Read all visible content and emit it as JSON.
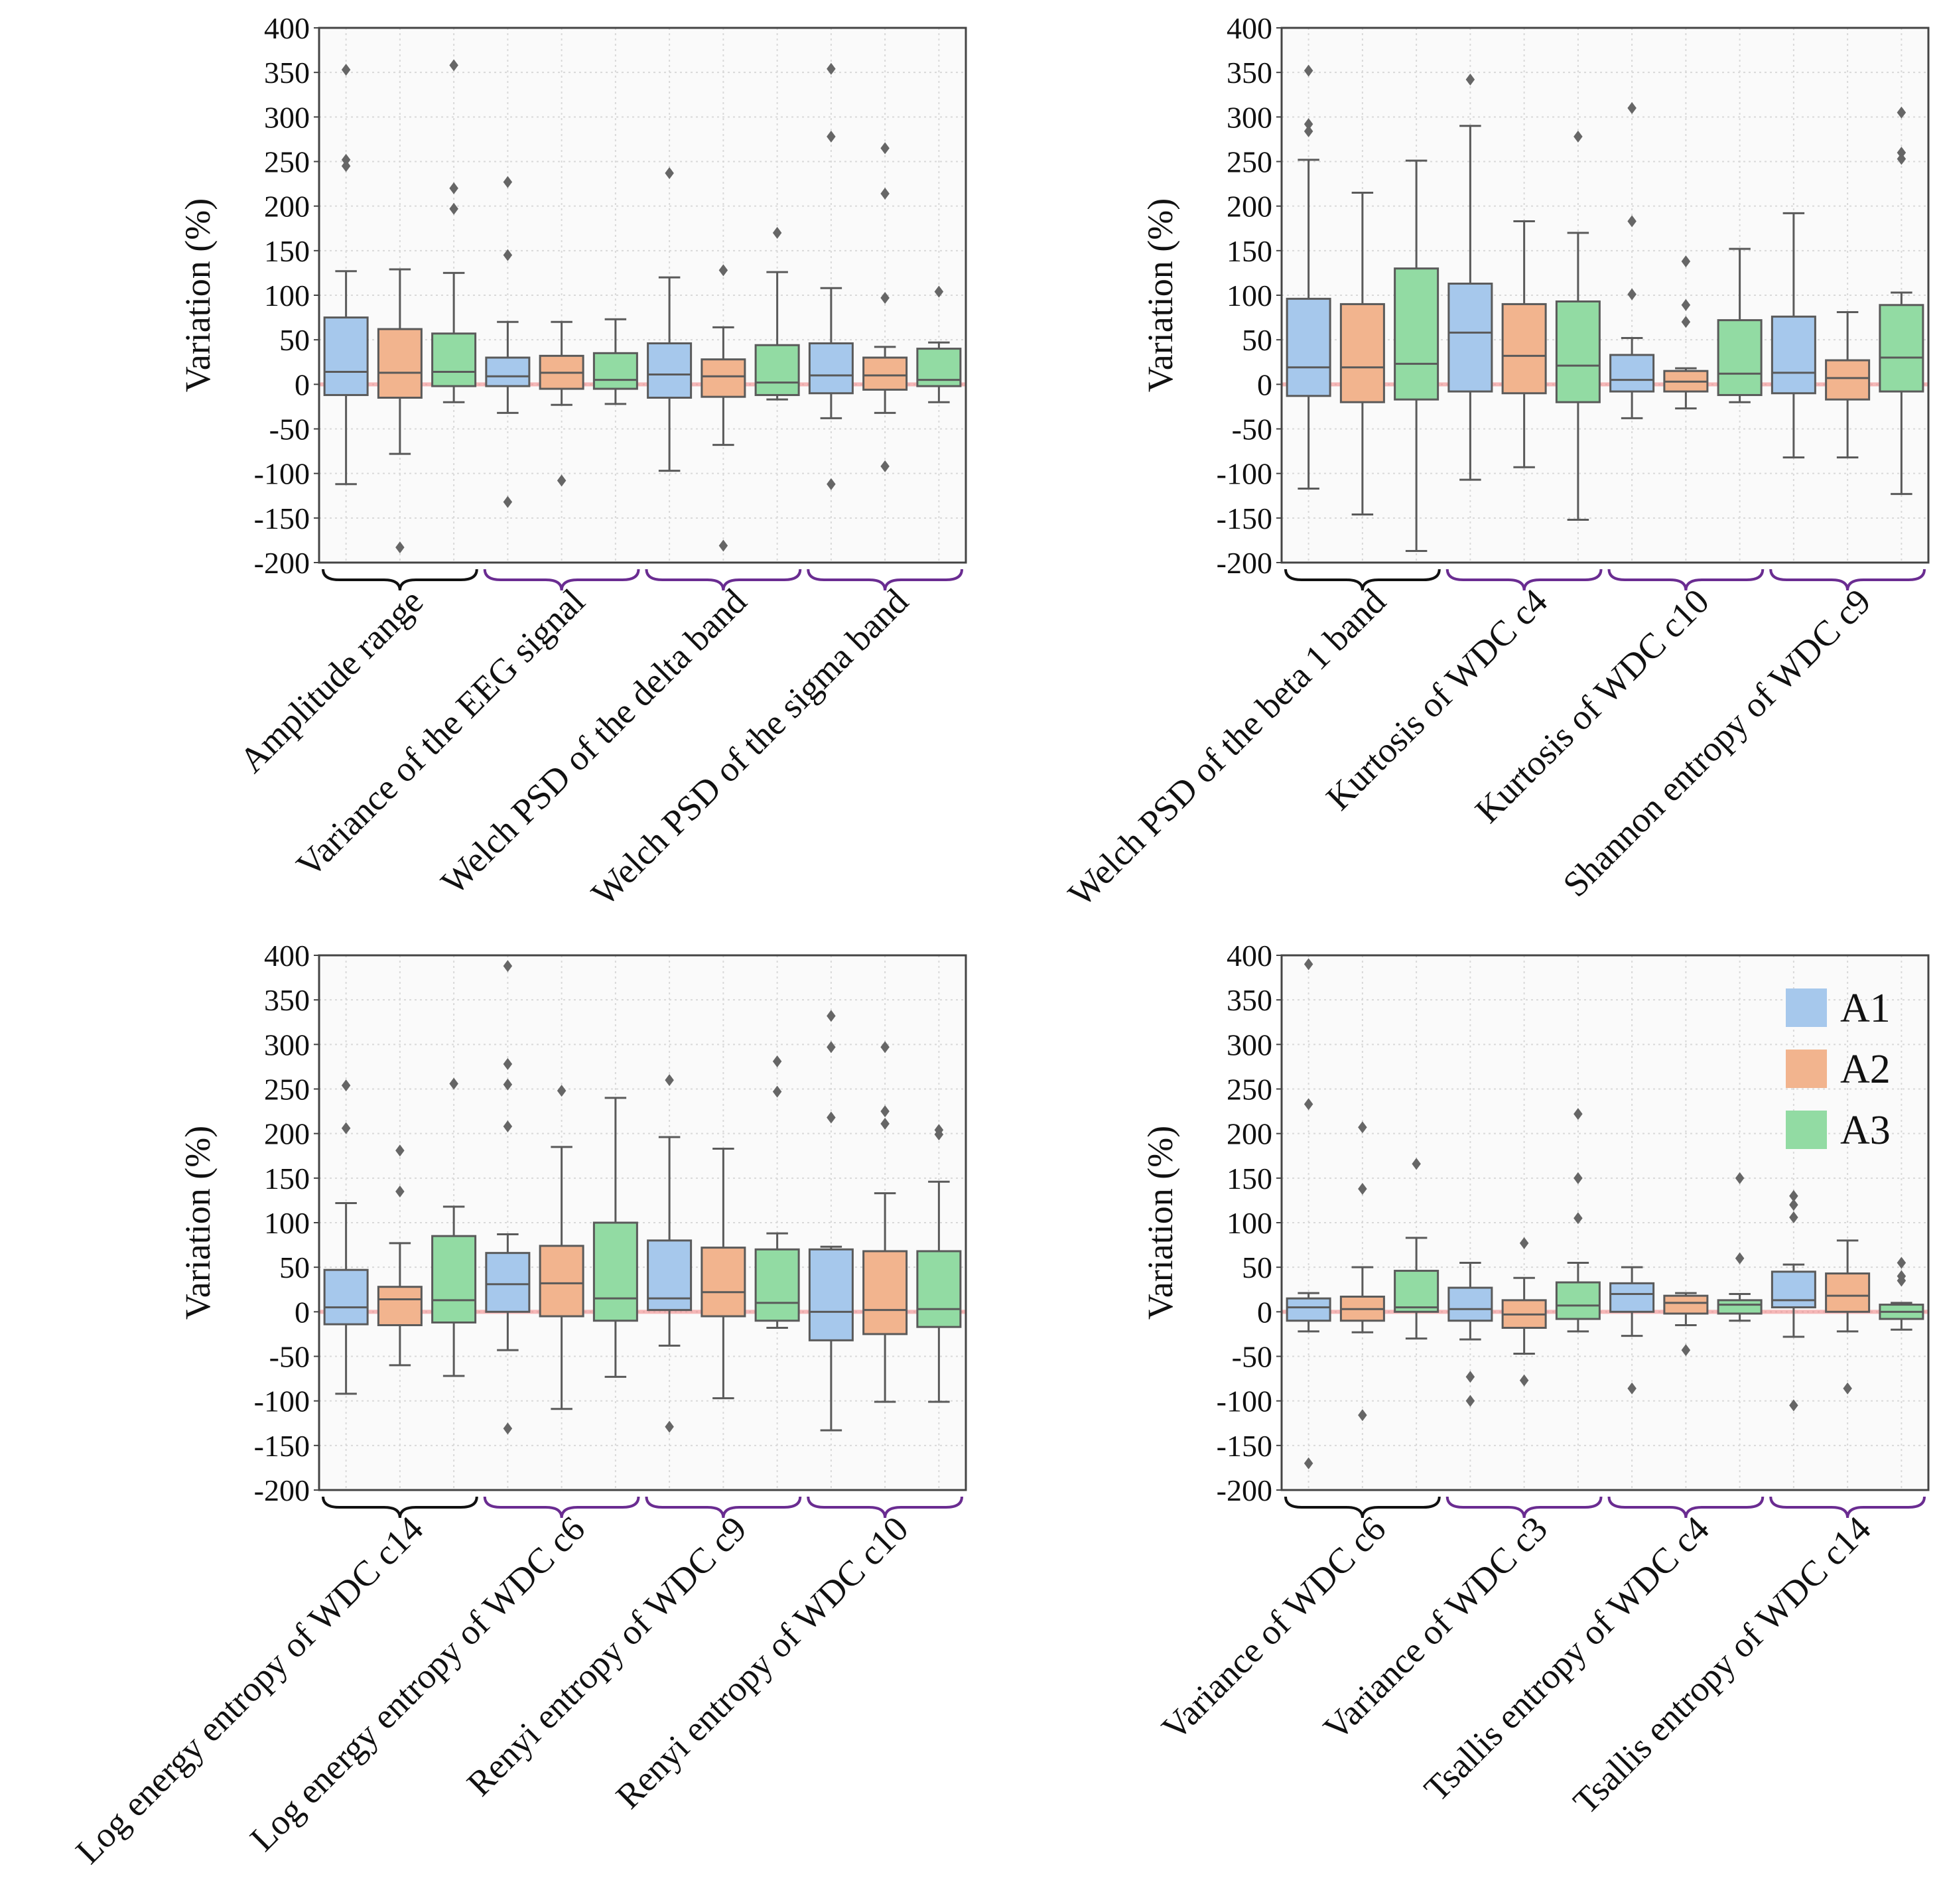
{
  "chart_data": {
    "type": "boxplot",
    "ylabel": "Variation (%)",
    "ylim": [
      -200,
      400
    ],
    "yticks": [
      400,
      350,
      300,
      250,
      200,
      150,
      100,
      50,
      0,
      -50,
      -100,
      -150,
      -200
    ],
    "grid": true,
    "legend": {
      "position": "top-right of bottom-right panel",
      "entries": [
        {
          "name": "A1",
          "color": "#a6c8ec"
        },
        {
          "name": "A2",
          "color": "#f2b48e"
        },
        {
          "name": "A3",
          "color": "#92dba3"
        }
      ]
    },
    "colors": {
      "box_edge": "#5a5a5a",
      "zero_line": "#f08080",
      "grid": "#d9d9d9",
      "plot_bg": "#fafafa",
      "first_brace": "#111111",
      "other_braces": "#6a2c91",
      "outlier": "#666666"
    },
    "panels": [
      {
        "features": [
          {
            "label": "Amplitude range",
            "boxes": [
              {
                "series": "A1",
                "whisker_low": -112,
                "q1": -12,
                "median": 14,
                "q3": 75,
                "whisker_high": 127,
                "outliers": [
                  353,
                  252,
                  245
                ]
              },
              {
                "series": "A2",
                "whisker_low": -78,
                "q1": -15,
                "median": 13,
                "q3": 62,
                "whisker_high": 129,
                "outliers": [
                  -183
                ]
              },
              {
                "series": "A3",
                "whisker_low": -20,
                "q1": -2,
                "median": 14,
                "q3": 57,
                "whisker_high": 125,
                "outliers": [
                  358,
                  220,
                  197
                ]
              }
            ]
          },
          {
            "label": "Variance of the EEG signal",
            "boxes": [
              {
                "series": "A1",
                "whisker_low": -32,
                "q1": -2,
                "median": 9,
                "q3": 30,
                "whisker_high": 70,
                "outliers": [
                  227,
                  145,
                  -132
                ]
              },
              {
                "series": "A2",
                "whisker_low": -23,
                "q1": -5,
                "median": 13,
                "q3": 32,
                "whisker_high": 70,
                "outliers": [
                  -108
                ]
              },
              {
                "series": "A3",
                "whisker_low": -22,
                "q1": -5,
                "median": 5,
                "q3": 35,
                "whisker_high": 73,
                "outliers": []
              }
            ]
          },
          {
            "label": "Welch PSD of the delta band",
            "boxes": [
              {
                "series": "A1",
                "whisker_low": -97,
                "q1": -15,
                "median": 11,
                "q3": 46,
                "whisker_high": 120,
                "outliers": [
                  237
                ]
              },
              {
                "series": "A2",
                "whisker_low": -68,
                "q1": -14,
                "median": 9,
                "q3": 28,
                "whisker_high": 64,
                "outliers": [
                  128,
                  -181
                ]
              },
              {
                "series": "A3",
                "whisker_low": -17,
                "q1": -12,
                "median": 2,
                "q3": 44,
                "whisker_high": 126,
                "outliers": [
                  170
                ]
              }
            ]
          },
          {
            "label": "Welch PSD of the sigma band",
            "boxes": [
              {
                "series": "A1",
                "whisker_low": -38,
                "q1": -10,
                "median": 10,
                "q3": 46,
                "whisker_high": 108,
                "outliers": [
                  354,
                  278,
                  -112
                ]
              },
              {
                "series": "A2",
                "whisker_low": -32,
                "q1": -6,
                "median": 10,
                "q3": 30,
                "whisker_high": 42,
                "outliers": [
                  265,
                  214,
                  97,
                  -92
                ]
              },
              {
                "series": "A3",
                "whisker_low": -20,
                "q1": -2,
                "median": 5,
                "q3": 40,
                "whisker_high": 47,
                "outliers": [
                  104
                ]
              }
            ]
          }
        ]
      },
      {
        "features": [
          {
            "label": "Welch PSD of the beta 1 band",
            "boxes": [
              {
                "series": "A1",
                "whisker_low": -117,
                "q1": -13,
                "median": 19,
                "q3": 96,
                "whisker_high": 252,
                "outliers": [
                  352,
                  292,
                  284
                ]
              },
              {
                "series": "A2",
                "whisker_low": -146,
                "q1": -20,
                "median": 19,
                "q3": 90,
                "whisker_high": 215,
                "outliers": []
              },
              {
                "series": "A3",
                "whisker_low": -187,
                "q1": -17,
                "median": 23,
                "q3": 130,
                "whisker_high": 251,
                "outliers": []
              }
            ]
          },
          {
            "label": "Kurtosis of WDC c4",
            "boxes": [
              {
                "series": "A1",
                "whisker_low": -107,
                "q1": -8,
                "median": 58,
                "q3": 113,
                "whisker_high": 290,
                "outliers": [
                  342
                ]
              },
              {
                "series": "A2",
                "whisker_low": -93,
                "q1": -10,
                "median": 32,
                "q3": 90,
                "whisker_high": 183,
                "outliers": []
              },
              {
                "series": "A3",
                "whisker_low": -152,
                "q1": -20,
                "median": 21,
                "q3": 93,
                "whisker_high": 170,
                "outliers": [
                  278
                ]
              }
            ]
          },
          {
            "label": "Kurtosis of WDC c10",
            "boxes": [
              {
                "series": "A1",
                "whisker_low": -38,
                "q1": -8,
                "median": 5,
                "q3": 33,
                "whisker_high": 52,
                "outliers": [
                  310,
                  183,
                  101
                ]
              },
              {
                "series": "A2",
                "whisker_low": -27,
                "q1": -8,
                "median": 3,
                "q3": 15,
                "whisker_high": 18,
                "outliers": [
                  138,
                  89,
                  70
                ]
              },
              {
                "series": "A3",
                "whisker_low": -20,
                "q1": -12,
                "median": 12,
                "q3": 72,
                "whisker_high": 152,
                "outliers": []
              }
            ]
          },
          {
            "label": "Shannon entropy of WDC c9",
            "boxes": [
              {
                "series": "A1",
                "whisker_low": -82,
                "q1": -10,
                "median": 13,
                "q3": 76,
                "whisker_high": 192,
                "outliers": []
              },
              {
                "series": "A2",
                "whisker_low": -82,
                "q1": -17,
                "median": 7,
                "q3": 27,
                "whisker_high": 81,
                "outliers": []
              },
              {
                "series": "A3",
                "whisker_low": -123,
                "q1": -8,
                "median": 30,
                "q3": 89,
                "whisker_high": 103,
                "outliers": [
                  305,
                  260,
                  253
                ]
              }
            ]
          }
        ]
      },
      {
        "features": [
          {
            "label": "Log energy entropy of WDC c14",
            "boxes": [
              {
                "series": "A1",
                "whisker_low": -92,
                "q1": -14,
                "median": 5,
                "q3": 47,
                "whisker_high": 122,
                "outliers": [
                  254,
                  206
                ]
              },
              {
                "series": "A2",
                "whisker_low": -60,
                "q1": -15,
                "median": 14,
                "q3": 28,
                "whisker_high": 77,
                "outliers": [
                  181,
                  135
                ]
              },
              {
                "series": "A3",
                "whisker_low": -72,
                "q1": -12,
                "median": 13,
                "q3": 85,
                "whisker_high": 118,
                "outliers": [
                  256
                ]
              }
            ]
          },
          {
            "label": "Log energy entropy of WDC c6",
            "boxes": [
              {
                "series": "A1",
                "whisker_low": -43,
                "q1": 0,
                "median": 31,
                "q3": 66,
                "whisker_high": 87,
                "outliers": [
                  388,
                  278,
                  255,
                  208,
                  -131
                ]
              },
              {
                "series": "A2",
                "whisker_low": -109,
                "q1": -5,
                "median": 32,
                "q3": 74,
                "whisker_high": 185,
                "outliers": [
                  248
                ]
              },
              {
                "series": "A3",
                "whisker_low": -73,
                "q1": -10,
                "median": 15,
                "q3": 100,
                "whisker_high": 240,
                "outliers": []
              }
            ]
          },
          {
            "label": "Renyi entropy of WDC c9",
            "boxes": [
              {
                "series": "A1",
                "whisker_low": -38,
                "q1": 2,
                "median": 15,
                "q3": 80,
                "whisker_high": 196,
                "outliers": [
                  260,
                  -129
                ]
              },
              {
                "series": "A2",
                "whisker_low": -97,
                "q1": -5,
                "median": 22,
                "q3": 72,
                "whisker_high": 183,
                "outliers": []
              },
              {
                "series": "A3",
                "whisker_low": -18,
                "q1": -10,
                "median": 10,
                "q3": 70,
                "whisker_high": 88,
                "outliers": [
                  281,
                  247
                ]
              }
            ]
          },
          {
            "label": "Renyi entropy of WDC c10",
            "boxes": [
              {
                "series": "A1",
                "whisker_low": -133,
                "q1": -32,
                "median": 0,
                "q3": 70,
                "whisker_high": 73,
                "outliers": [
                  332,
                  297,
                  218
                ]
              },
              {
                "series": "A2",
                "whisker_low": -101,
                "q1": -25,
                "median": 2,
                "q3": 68,
                "whisker_high": 133,
                "outliers": [
                  297,
                  225,
                  211
                ]
              },
              {
                "series": "A3",
                "whisker_low": -101,
                "q1": -17,
                "median": 3,
                "q3": 68,
                "whisker_high": 146,
                "outliers": [
                  204,
                  199
                ]
              }
            ]
          }
        ]
      },
      {
        "features": [
          {
            "label": "Variance of WDC c6",
            "boxes": [
              {
                "series": "A1",
                "whisker_low": -22,
                "q1": -10,
                "median": 5,
                "q3": 15,
                "whisker_high": 21,
                "outliers": [
                  390,
                  233,
                  -170
                ]
              },
              {
                "series": "A2",
                "whisker_low": -23,
                "q1": -10,
                "median": 3,
                "q3": 17,
                "whisker_high": 50,
                "outliers": [
                  207,
                  138,
                  -116
                ]
              },
              {
                "series": "A3",
                "whisker_low": -30,
                "q1": 0,
                "median": 5,
                "q3": 46,
                "whisker_high": 83,
                "outliers": [
                  166
                ]
              }
            ]
          },
          {
            "label": "Variance of WDC c3",
            "boxes": [
              {
                "series": "A1",
                "whisker_low": -31,
                "q1": -10,
                "median": 3,
                "q3": 27,
                "whisker_high": 55,
                "outliers": [
                  -73,
                  -100
                ]
              },
              {
                "series": "A2",
                "whisker_low": -47,
                "q1": -18,
                "median": -3,
                "q3": 13,
                "whisker_high": 38,
                "outliers": [
                  77,
                  -77
                ]
              },
              {
                "series": "A3",
                "whisker_low": -22,
                "q1": -8,
                "median": 7,
                "q3": 33,
                "whisker_high": 55,
                "outliers": [
                  222,
                  150,
                  105
                ]
              }
            ]
          },
          {
            "label": "Tsallis entropy of WDC c4",
            "boxes": [
              {
                "series": "A1",
                "whisker_low": -27,
                "q1": 0,
                "median": 20,
                "q3": 32,
                "whisker_high": 50,
                "outliers": [
                  -86
                ]
              },
              {
                "series": "A2",
                "whisker_low": -15,
                "q1": -2,
                "median": 10,
                "q3": 18,
                "whisker_high": 21,
                "outliers": [
                  -43
                ]
              },
              {
                "series": "A3",
                "whisker_low": -10,
                "q1": -2,
                "median": 8,
                "q3": 13,
                "whisker_high": 20,
                "outliers": [
                  150,
                  60
                ]
              }
            ]
          },
          {
            "label": "Tsallis entropy of WDC c14",
            "boxes": [
              {
                "series": "A1",
                "whisker_low": -28,
                "q1": 5,
                "median": 13,
                "q3": 45,
                "whisker_high": 53,
                "outliers": [
                  130,
                  120,
                  106,
                  -105
                ]
              },
              {
                "series": "A2",
                "whisker_low": -22,
                "q1": 0,
                "median": 18,
                "q3": 43,
                "whisker_high": 80,
                "outliers": [
                  -86
                ]
              },
              {
                "series": "A3",
                "whisker_low": -20,
                "q1": -8,
                "median": 0,
                "q3": 8,
                "whisker_high": 10,
                "outliers": [
                  55,
                  40,
                  35
                ]
              }
            ]
          }
        ]
      }
    ]
  }
}
